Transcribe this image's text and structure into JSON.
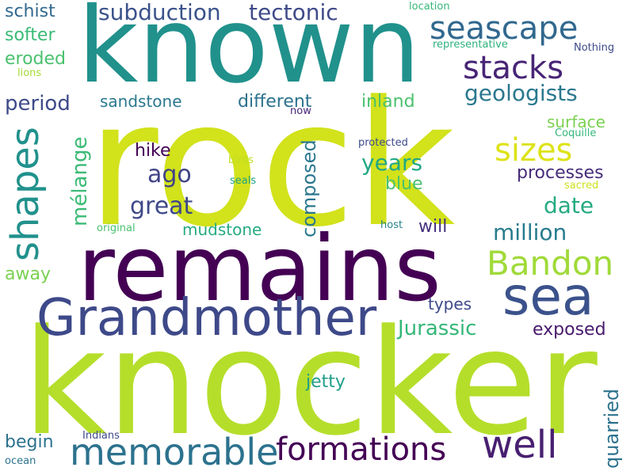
{
  "words": {
    "rock": {
      "text": "rock",
      "color": "#d2e21b"
    },
    "knocker": {
      "text": "knocker",
      "color": "#b5de2b"
    },
    "remains": {
      "text": "remains",
      "color": "#440154"
    },
    "known": {
      "text": "known",
      "color": "#21918c"
    },
    "grandmother": {
      "text": "Grandmother",
      "color": "#3e4989"
    },
    "sea": {
      "text": "sea",
      "color": "#3b528b"
    },
    "memorable": {
      "text": "memorable",
      "color": "#2c728e"
    },
    "formations": {
      "text": "formations",
      "color": "#440154"
    },
    "well": {
      "text": "well",
      "color": "#481f70"
    },
    "bandon": {
      "text": "Bandon",
      "color": "#a0da39"
    },
    "seascape": {
      "text": "seascape",
      "color": "#31688e"
    },
    "stacks": {
      "text": "stacks",
      "color": "#482576"
    },
    "sizes": {
      "text": "sizes",
      "color": "#dde318"
    },
    "shapes": {
      "text": "shapes",
      "color": "#21918c"
    },
    "subduction": {
      "text": "subduction",
      "color": "#3b528b"
    },
    "tectonic": {
      "text": "tectonic",
      "color": "#3e4a89"
    },
    "jurassic": {
      "text": "Jurassic",
      "color": "#35b779"
    },
    "geologists": {
      "text": "geologists",
      "color": "#2a788e"
    },
    "great": {
      "text": "great",
      "color": "#3e4989"
    },
    "million": {
      "text": "million",
      "color": "#287c8e"
    },
    "years": {
      "text": "years",
      "color": "#22a884"
    },
    "date": {
      "text": "date",
      "color": "#25ab82"
    },
    "ago": {
      "text": "ago",
      "color": "#414487"
    },
    "melange": {
      "text": "mélange",
      "color": "#3bbb75"
    },
    "period": {
      "text": "period",
      "color": "#3e4a89"
    },
    "different": {
      "text": "different",
      "color": "#2c728e"
    },
    "inland": {
      "text": "inland",
      "color": "#4ac16d"
    },
    "sandstone": {
      "text": "sandstone",
      "color": "#2a788e"
    },
    "surface": {
      "text": "surface",
      "color": "#7ad151"
    },
    "processes": {
      "text": "processes",
      "color": "#472c7a"
    },
    "blue": {
      "text": "blue",
      "color": "#4ac16d"
    },
    "composed": {
      "text": "composed",
      "color": "#2a778e"
    },
    "mudstone": {
      "text": "mudstone",
      "color": "#25ab82"
    },
    "will": {
      "text": "will",
      "color": "#46327e"
    },
    "hike": {
      "text": "hike",
      "color": "#440154"
    },
    "exposed": {
      "text": "exposed",
      "color": "#481a6c"
    },
    "types": {
      "text": "types",
      "color": "#3e4a89"
    },
    "jetty": {
      "text": "jetty",
      "color": "#1f9e89"
    },
    "quarried": {
      "text": "quarried",
      "color": "#2c728e"
    },
    "begin": {
      "text": "begin",
      "color": "#2c728e"
    },
    "away": {
      "text": "away",
      "color": "#7ad151"
    },
    "schist": {
      "text": "schist",
      "color": "#31688e"
    },
    "softer": {
      "text": "softer",
      "color": "#3bbb75"
    },
    "eroded": {
      "text": "eroded",
      "color": "#4ac16d"
    },
    "lions": {
      "text": "lions",
      "color": "#a5db36"
    },
    "location": {
      "text": "location",
      "color": "#35b779"
    },
    "representative": {
      "text": "representative",
      "color": "#2db27d"
    },
    "nothing": {
      "text": "Nothing",
      "color": "#3e4a89"
    },
    "now": {
      "text": "now",
      "color": "#482475"
    },
    "coquille": {
      "text": "Coquille",
      "color": "#35b779"
    },
    "protected": {
      "text": "protected",
      "color": "#3e4989"
    },
    "sacred": {
      "text": "sacred",
      "color": "#cde11d"
    },
    "birds": {
      "text": "birds",
      "color": "#c2df23"
    },
    "seals": {
      "text": "seals",
      "color": "#1fa088"
    },
    "original": {
      "text": "original",
      "color": "#4ac16d"
    },
    "host": {
      "text": "host",
      "color": "#26828e"
    },
    "indians": {
      "text": "Indians",
      "color": "#3e4a89"
    },
    "ocean": {
      "text": "ocean",
      "color": "#2c728e"
    }
  }
}
